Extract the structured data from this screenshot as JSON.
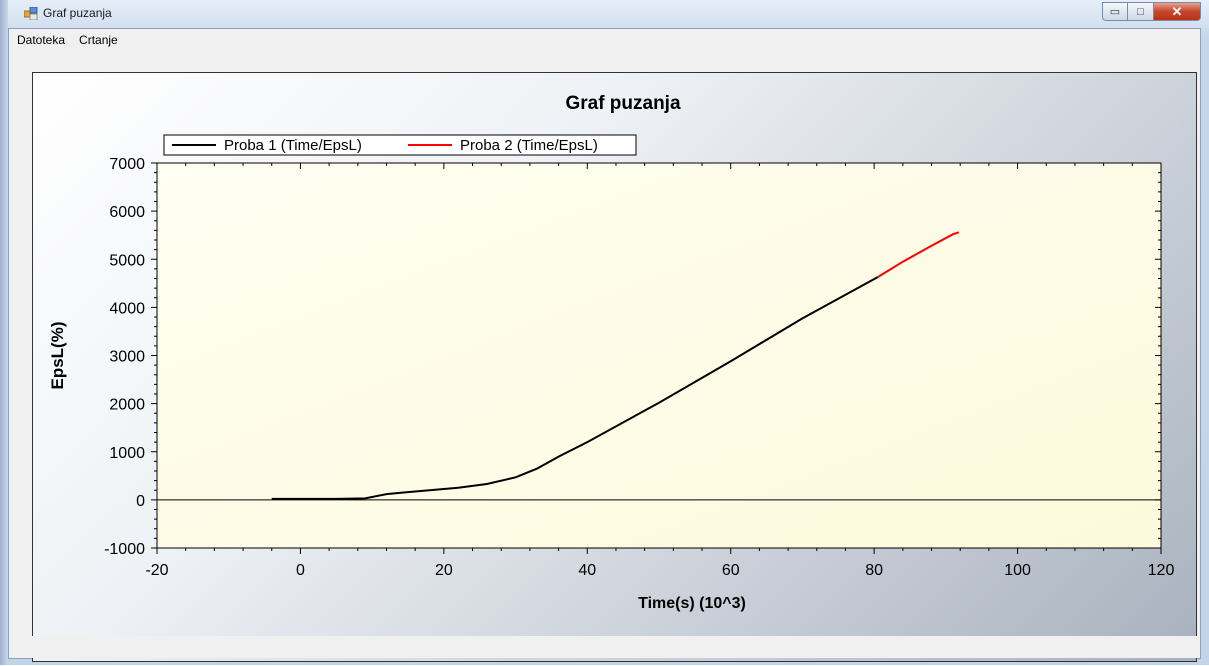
{
  "window": {
    "title": "Graf puzanja",
    "minimize_glyph": "▭",
    "maximize_glyph": "□",
    "close_glyph": "✕"
  },
  "menu": {
    "items": [
      {
        "label": "Datoteka"
      },
      {
        "label": "Crtanje"
      }
    ]
  },
  "chart_data": {
    "type": "line",
    "title": "Graf puzanja",
    "xlabel": "Time(s) (10^3)",
    "ylabel": "EpsL(%)",
    "xlim": [
      -20,
      120
    ],
    "ylim": [
      -1000,
      7000
    ],
    "xticks": [
      -20,
      0,
      20,
      40,
      60,
      80,
      100,
      120
    ],
    "yticks": [
      -1000,
      0,
      1000,
      2000,
      3000,
      4000,
      5000,
      6000,
      7000
    ],
    "legend_position": "top-left",
    "grid": false,
    "series": [
      {
        "name": "Proba 1 (Time/EpsL)",
        "color": "#000000",
        "x": [
          -4,
          0,
          5,
          9,
          10,
          12,
          14,
          18,
          22,
          26,
          30,
          33,
          36,
          40,
          50,
          60,
          70,
          80.5
        ],
        "y": [
          20,
          20,
          20,
          30,
          60,
          120,
          150,
          200,
          250,
          330,
          470,
          650,
          900,
          1200,
          2020,
          2880,
          3770,
          4630
        ]
      },
      {
        "name": "Proba 2 (Time/EpsL)",
        "color": "#ff0000",
        "x": [
          80.5,
          84,
          88,
          91,
          91.8
        ],
        "y": [
          4630,
          4950,
          5280,
          5520,
          5560
        ]
      }
    ]
  }
}
